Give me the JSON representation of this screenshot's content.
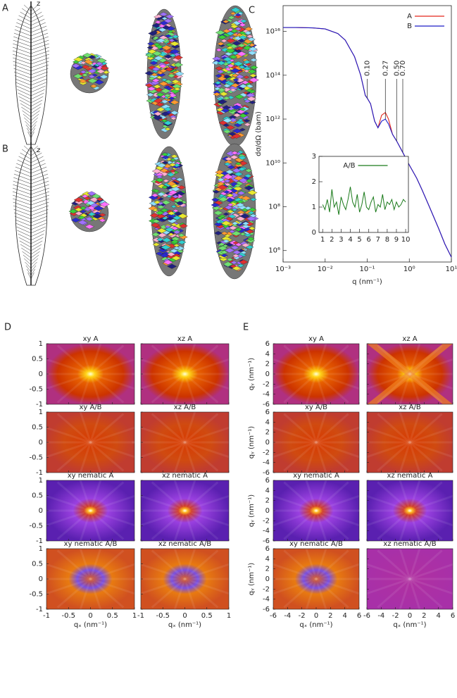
{
  "panel_labels": {
    "a": "A",
    "b": "B",
    "c": "C",
    "d": "D",
    "e": "E"
  },
  "drawing_axis_label": "z",
  "chart_data": [
    {
      "type": "line",
      "xlabel": "q (nm⁻¹)",
      "ylabel": "dσ/dΩ (barn)",
      "log_x": true,
      "log_y": true,
      "xlim": [
        0.001,
        10
      ],
      "ylim": [
        300000,
        1.5e+17
      ],
      "xticks": [
        {
          "value": 0.001,
          "label": "10⁻³"
        },
        {
          "value": 0.01,
          "label": "10⁻²"
        },
        {
          "value": 0.1,
          "label": "10⁻¹"
        },
        {
          "value": 1,
          "label": "10⁰"
        },
        {
          "value": 10,
          "label": "10¹"
        }
      ],
      "yticks": [
        {
          "value": 1000000.0,
          "label": "10⁶"
        },
        {
          "value": 100000000.0,
          "label": "10⁸"
        },
        {
          "value": 10000000000.0,
          "label": "10¹⁰"
        },
        {
          "value": 1000000000000.0,
          "label": "10¹²"
        },
        {
          "value": 100000000000000.0,
          "label": "10¹⁴"
        },
        {
          "value": 1e+16,
          "label": "10¹⁶"
        }
      ],
      "legend": "upper right",
      "x": [
        0.001,
        0.002,
        0.005,
        0.01,
        0.02,
        0.03,
        0.05,
        0.07,
        0.09,
        0.1,
        0.12,
        0.15,
        0.18,
        0.22,
        0.27,
        0.32,
        0.4,
        0.5,
        0.7,
        1,
        1.5,
        2,
        3,
        5,
        7,
        10
      ],
      "series": [
        {
          "name": "A",
          "color": "#e3261b",
          "values": [
            1.5e+16,
            1.5e+16,
            1.45e+16,
            1.3e+16,
            8000000000000000.0,
            4000000000000000.0,
            700000000000000.0,
            100000000000000.0,
            12000000000000.0,
            9000000000000.0,
            5000000000000.0,
            800000000000.0,
            400000000000.0,
            1500000000000.0,
            2000000000000.0,
            1000000000000.0,
            200000000000.0,
            100000000000.0,
            30000000000.0,
            8000000000.0,
            2000000000.0,
            600000000.0,
            100000000.0,
            10000000.0,
            2000000.0,
            500000.0
          ]
        },
        {
          "name": "B",
          "color": "#1c1cc8",
          "values": [
            1.5e+16,
            1.5e+16,
            1.45e+16,
            1.3e+16,
            8000000000000000.0,
            4000000000000000.0,
            700000000000000.0,
            100000000000000.0,
            12000000000000.0,
            9000000000000.0,
            5000000000000.0,
            800000000000.0,
            400000000000.0,
            800000000000.0,
            1000000000000.0,
            600000000000.0,
            200000000000.0,
            100000000000.0,
            30000000000.0,
            8000000000.0,
            2000000000.0,
            600000000.0,
            100000000.0,
            10000000.0,
            2000000.0,
            500000.0
          ]
        }
      ],
      "annotations": [
        {
          "x": 0.1,
          "label": "0.10"
        },
        {
          "x": 0.27,
          "label": "0.27"
        },
        {
          "x": 0.5,
          "label": "0.50"
        },
        {
          "x": 0.7,
          "label": "0.70"
        }
      ],
      "inset": {
        "type": "line",
        "xlim": [
          0.6,
          10.3
        ],
        "ylim": [
          0,
          3
        ],
        "xticks": [
          1,
          2,
          3,
          4,
          5,
          6,
          7,
          8,
          9,
          10
        ],
        "yticks": [
          0,
          1,
          2,
          3
        ],
        "legend": "upper center",
        "x": [
          1,
          1.25,
          1.5,
          1.75,
          2,
          2.25,
          2.5,
          2.75,
          3,
          3.25,
          3.5,
          3.75,
          4,
          4.25,
          4.5,
          4.75,
          5,
          5.25,
          5.5,
          5.75,
          6,
          6.25,
          6.5,
          6.75,
          7,
          7.25,
          7.5,
          7.75,
          8,
          8.25,
          8.5,
          8.75,
          9,
          9.25,
          9.5,
          9.75,
          10
        ],
        "series": [
          {
            "name": "A/B",
            "color": "#1a7a1a",
            "values": [
              1.1,
              0.9,
              1.3,
              0.8,
              1.7,
              1.0,
              1.2,
              0.7,
              1.4,
              1.1,
              0.9,
              1.3,
              1.8,
              1.2,
              1.0,
              1.5,
              0.8,
              1.1,
              1.6,
              1.0,
              0.9,
              1.2,
              1.4,
              0.8,
              1.1,
              1.0,
              1.5,
              0.9,
              1.2,
              1.1,
              1.3,
              0.9,
              1.2,
              1.0,
              1.1,
              1.3,
              1.2
            ]
          }
        ]
      }
    },
    {
      "type": "heatmap",
      "panels": [
        "xy  A",
        "xz  A",
        "xy  A/B",
        "xz  A/B",
        "xy nematic A",
        "xz nematic A",
        "xy nematic A/B",
        "xz nematic A/B"
      ],
      "xlim": [
        -1,
        1
      ],
      "ylim": [
        -1,
        1
      ],
      "xticks": [
        -1,
        -0.5,
        0,
        0.5,
        1
      ],
      "yticks": [
        -1,
        -0.5,
        0,
        0.5,
        1
      ],
      "xlabel": "qₓ (nm⁻¹)"
    },
    {
      "type": "heatmap",
      "panels": [
        "xy  A",
        "xz  A",
        "xy  A/B",
        "xz  A/B",
        "xy nematic A",
        "xz nematic A",
        "xy nematic A/B",
        "xz nematic A/B"
      ],
      "xlim": [
        -6,
        6
      ],
      "ylim": [
        -6,
        6
      ],
      "xticks": [
        -6,
        -4,
        -2,
        0,
        2,
        4,
        6
      ],
      "yticks": [
        -6,
        -4,
        -2,
        0,
        2,
        4,
        6
      ],
      "xlabel": "qₓ (nm⁻¹)",
      "ylabel": "qᵧ (nm⁻¹)"
    }
  ]
}
